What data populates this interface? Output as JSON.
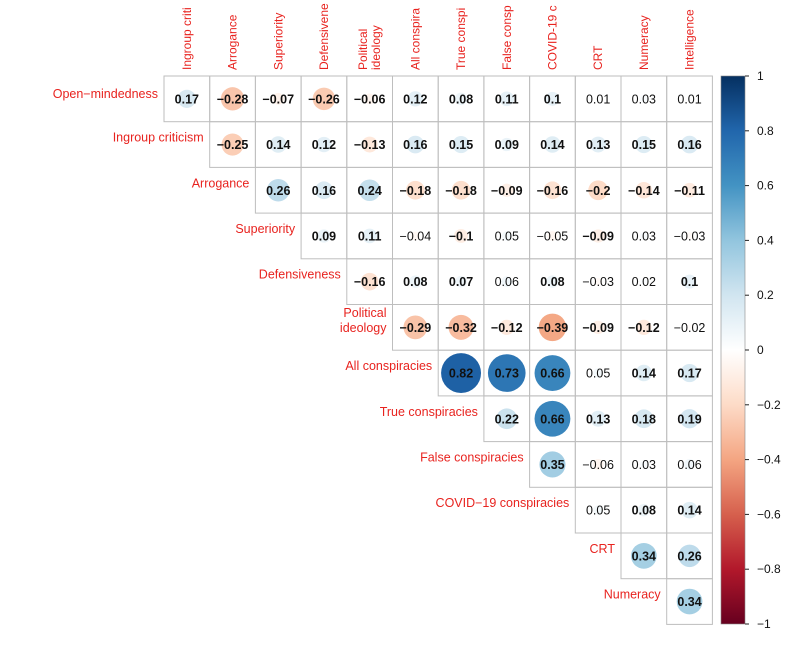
{
  "chart_data": {
    "type": "heatmap",
    "subtype": "upper-triangle correlation plot (circles)",
    "columns": [
      "Ingroup criti",
      "Arrogance",
      "Superiority",
      "Defensivene",
      "Political\nideology",
      "All conspira",
      "True conspi",
      "False consp",
      "COVID-19 c",
      "CRT",
      "Numeracy",
      "Intelligence"
    ],
    "rows": [
      "Open−mindedness",
      "Ingroup criticism",
      "Arrogance",
      "Superiority",
      "Defensiveness",
      "Political\nideology",
      "All conspiracies",
      "True conspiracies",
      "False conspiracies",
      "COVID−19 conspiracies",
      "CRT",
      "Numeracy"
    ],
    "cells": [
      {
        "row": 0,
        "col": 0,
        "value": 0.17,
        "label": "0.17",
        "bold": true
      },
      {
        "row": 0,
        "col": 1,
        "value": -0.28,
        "label": "−0.28",
        "bold": true
      },
      {
        "row": 0,
        "col": 2,
        "value": -0.07,
        "label": "−0.07",
        "bold": true
      },
      {
        "row": 0,
        "col": 3,
        "value": -0.26,
        "label": "−0.26",
        "bold": true
      },
      {
        "row": 0,
        "col": 4,
        "value": -0.06,
        "label": "−0.06",
        "bold": true
      },
      {
        "row": 0,
        "col": 5,
        "value": 0.12,
        "label": "0.12",
        "bold": true
      },
      {
        "row": 0,
        "col": 6,
        "value": 0.08,
        "label": "0.08",
        "bold": true
      },
      {
        "row": 0,
        "col": 7,
        "value": 0.11,
        "label": "0.11",
        "bold": true
      },
      {
        "row": 0,
        "col": 8,
        "value": 0.1,
        "label": "0.1",
        "bold": true
      },
      {
        "row": 0,
        "col": 9,
        "value": 0.01,
        "label": "0.01",
        "bold": false
      },
      {
        "row": 0,
        "col": 10,
        "value": 0.03,
        "label": "0.03",
        "bold": false
      },
      {
        "row": 0,
        "col": 11,
        "value": 0.01,
        "label": "0.01",
        "bold": false
      },
      {
        "row": 1,
        "col": 1,
        "value": -0.25,
        "label": "−0.25",
        "bold": true
      },
      {
        "row": 1,
        "col": 2,
        "value": 0.14,
        "label": "0.14",
        "bold": true
      },
      {
        "row": 1,
        "col": 3,
        "value": 0.12,
        "label": "0.12",
        "bold": true
      },
      {
        "row": 1,
        "col": 4,
        "value": -0.13,
        "label": "−0.13",
        "bold": true
      },
      {
        "row": 1,
        "col": 5,
        "value": 0.16,
        "label": "0.16",
        "bold": true
      },
      {
        "row": 1,
        "col": 6,
        "value": 0.15,
        "label": "0.15",
        "bold": true
      },
      {
        "row": 1,
        "col": 7,
        "value": 0.09,
        "label": "0.09",
        "bold": true
      },
      {
        "row": 1,
        "col": 8,
        "value": 0.14,
        "label": "0.14",
        "bold": true
      },
      {
        "row": 1,
        "col": 9,
        "value": 0.13,
        "label": "0.13",
        "bold": true
      },
      {
        "row": 1,
        "col": 10,
        "value": 0.15,
        "label": "0.15",
        "bold": true
      },
      {
        "row": 1,
        "col": 11,
        "value": 0.16,
        "label": "0.16",
        "bold": true
      },
      {
        "row": 2,
        "col": 2,
        "value": 0.26,
        "label": "0.26",
        "bold": true
      },
      {
        "row": 2,
        "col": 3,
        "value": 0.16,
        "label": "0.16",
        "bold": true
      },
      {
        "row": 2,
        "col": 4,
        "value": 0.24,
        "label": "0.24",
        "bold": true
      },
      {
        "row": 2,
        "col": 5,
        "value": -0.18,
        "label": "−0.18",
        "bold": true
      },
      {
        "row": 2,
        "col": 6,
        "value": -0.18,
        "label": "−0.18",
        "bold": true
      },
      {
        "row": 2,
        "col": 7,
        "value": -0.09,
        "label": "−0.09",
        "bold": true
      },
      {
        "row": 2,
        "col": 8,
        "value": -0.16,
        "label": "−0.16",
        "bold": true
      },
      {
        "row": 2,
        "col": 9,
        "value": -0.2,
        "label": "−0.2",
        "bold": true
      },
      {
        "row": 2,
        "col": 10,
        "value": -0.14,
        "label": "−0.14",
        "bold": true
      },
      {
        "row": 2,
        "col": 11,
        "value": -0.11,
        "label": "−0.11",
        "bold": true
      },
      {
        "row": 3,
        "col": 3,
        "value": 0.09,
        "label": "0.09",
        "bold": true
      },
      {
        "row": 3,
        "col": 4,
        "value": 0.11,
        "label": "0.11",
        "bold": true
      },
      {
        "row": 3,
        "col": 5,
        "value": -0.04,
        "label": "−0.04",
        "bold": false
      },
      {
        "row": 3,
        "col": 6,
        "value": -0.1,
        "label": "−0.1",
        "bold": true
      },
      {
        "row": 3,
        "col": 7,
        "value": 0.05,
        "label": "0.05",
        "bold": false
      },
      {
        "row": 3,
        "col": 8,
        "value": -0.05,
        "label": "−0.05",
        "bold": false
      },
      {
        "row": 3,
        "col": 9,
        "value": -0.09,
        "label": "−0.09",
        "bold": true
      },
      {
        "row": 3,
        "col": 10,
        "value": 0.03,
        "label": "0.03",
        "bold": false
      },
      {
        "row": 3,
        "col": 11,
        "value": -0.03,
        "label": "−0.03",
        "bold": false
      },
      {
        "row": 4,
        "col": 4,
        "value": -0.16,
        "label": "−0.16",
        "bold": true
      },
      {
        "row": 4,
        "col": 5,
        "value": 0.08,
        "label": "0.08",
        "bold": true
      },
      {
        "row": 4,
        "col": 6,
        "value": 0.07,
        "label": "0.07",
        "bold": true
      },
      {
        "row": 4,
        "col": 7,
        "value": 0.06,
        "label": "0.06",
        "bold": false
      },
      {
        "row": 4,
        "col": 8,
        "value": 0.08,
        "label": "0.08",
        "bold": true
      },
      {
        "row": 4,
        "col": 9,
        "value": -0.03,
        "label": "−0.03",
        "bold": false
      },
      {
        "row": 4,
        "col": 10,
        "value": 0.02,
        "label": "0.02",
        "bold": false
      },
      {
        "row": 4,
        "col": 11,
        "value": 0.1,
        "label": "0.1",
        "bold": true
      },
      {
        "row": 5,
        "col": 5,
        "value": -0.29,
        "label": "−0.29",
        "bold": true
      },
      {
        "row": 5,
        "col": 6,
        "value": -0.32,
        "label": "−0.32",
        "bold": true
      },
      {
        "row": 5,
        "col": 7,
        "value": -0.12,
        "label": "−0.12",
        "bold": true
      },
      {
        "row": 5,
        "col": 8,
        "value": -0.39,
        "label": "−0.39",
        "bold": true
      },
      {
        "row": 5,
        "col": 9,
        "value": -0.09,
        "label": "−0.09",
        "bold": true
      },
      {
        "row": 5,
        "col": 10,
        "value": -0.12,
        "label": "−0.12",
        "bold": true
      },
      {
        "row": 5,
        "col": 11,
        "value": -0.02,
        "label": "−0.02",
        "bold": false
      },
      {
        "row": 6,
        "col": 6,
        "value": 0.82,
        "label": "0.82",
        "bold": true
      },
      {
        "row": 6,
        "col": 7,
        "value": 0.73,
        "label": "0.73",
        "bold": true
      },
      {
        "row": 6,
        "col": 8,
        "value": 0.66,
        "label": "0.66",
        "bold": true
      },
      {
        "row": 6,
        "col": 9,
        "value": 0.05,
        "label": "0.05",
        "bold": false
      },
      {
        "row": 6,
        "col": 10,
        "value": 0.14,
        "label": "0.14",
        "bold": true
      },
      {
        "row": 6,
        "col": 11,
        "value": 0.17,
        "label": "0.17",
        "bold": true
      },
      {
        "row": 7,
        "col": 7,
        "value": 0.22,
        "label": "0.22",
        "bold": true
      },
      {
        "row": 7,
        "col": 8,
        "value": 0.66,
        "label": "0.66",
        "bold": true
      },
      {
        "row": 7,
        "col": 9,
        "value": 0.13,
        "label": "0.13",
        "bold": true
      },
      {
        "row": 7,
        "col": 10,
        "value": 0.18,
        "label": "0.18",
        "bold": true
      },
      {
        "row": 7,
        "col": 11,
        "value": 0.19,
        "label": "0.19",
        "bold": true
      },
      {
        "row": 8,
        "col": 8,
        "value": 0.35,
        "label": "0.35",
        "bold": true
      },
      {
        "row": 8,
        "col": 9,
        "value": -0.06,
        "label": "−0.06",
        "bold": false
      },
      {
        "row": 8,
        "col": 10,
        "value": 0.03,
        "label": "0.03",
        "bold": false
      },
      {
        "row": 8,
        "col": 11,
        "value": 0.06,
        "label": "0.06",
        "bold": false
      },
      {
        "row": 9,
        "col": 9,
        "value": 0.05,
        "label": "0.05",
        "bold": false
      },
      {
        "row": 9,
        "col": 10,
        "value": 0.08,
        "label": "0.08",
        "bold": true
      },
      {
        "row": 9,
        "col": 11,
        "value": 0.14,
        "label": "0.14",
        "bold": true
      },
      {
        "row": 10,
        "col": 10,
        "value": 0.34,
        "label": "0.34",
        "bold": true
      },
      {
        "row": 10,
        "col": 11,
        "value": 0.26,
        "label": "0.26",
        "bold": true
      },
      {
        "row": 11,
        "col": 11,
        "value": 0.34,
        "label": "0.34",
        "bold": true
      }
    ],
    "colorbar": {
      "range": [
        -1,
        1
      ],
      "ticks": [
        1,
        0.8,
        0.6,
        0.4,
        0.2,
        0,
        -0.2,
        -0.4,
        -0.6,
        -0.8,
        -1
      ],
      "tick_labels": [
        "1",
        "0.8",
        "0.6",
        "0.4",
        "0.2",
        "0",
        "−0.2",
        "−0.4",
        "−0.6",
        "−0.8",
        "−1"
      ],
      "colors": [
        "#67001F",
        "#B2182B",
        "#D6604D",
        "#F4A582",
        "#FDDBC7",
        "#FFFFFF",
        "#D1E5F0",
        "#92C5DE",
        "#4393C3",
        "#2166AC",
        "#053061"
      ]
    },
    "label_color": "#E8231F",
    "grid_color": "#BEBEBE"
  }
}
